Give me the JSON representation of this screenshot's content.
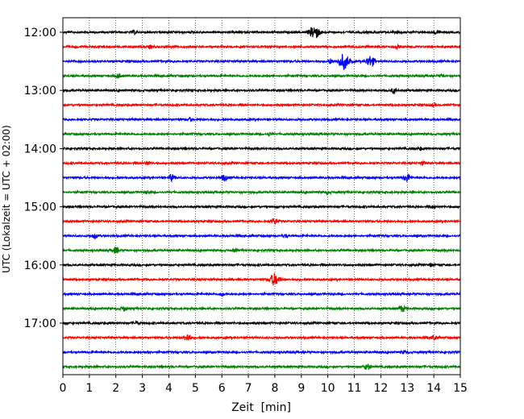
{
  "chart_data": {
    "type": "line",
    "title": "",
    "xlabel": "Zeit  [min]",
    "ylabel": "UTC (Lokalzeit = UTC + 02:00)",
    "xlim": [
      0,
      15
    ],
    "x_ticks": [
      "0",
      "1",
      "2",
      "3",
      "4",
      "5",
      "6",
      "7",
      "8",
      "9",
      "10",
      "11",
      "12",
      "13",
      "14",
      "15"
    ],
    "y_ticks": [
      "12:00",
      "13:00",
      "14:00",
      "15:00",
      "16:00",
      "17:00"
    ],
    "grid": "vertical dotted at each minute",
    "trace_interval_min": 15,
    "trace_colors": [
      "#000000",
      "#ff0000",
      "#0000ff",
      "#008000"
    ],
    "series": [
      {
        "start": "12:00",
        "color": "#000000",
        "events": [
          [
            9.5,
            9
          ],
          [
            14.1,
            3
          ],
          [
            2.7,
            2
          ]
        ]
      },
      {
        "start": "12:15",
        "color": "#ff0000",
        "events": [
          [
            3.3,
            2
          ],
          [
            12.6,
            2
          ]
        ]
      },
      {
        "start": "12:30",
        "color": "#0000ff",
        "events": [
          [
            10.6,
            10
          ],
          [
            11.6,
            7
          ],
          [
            10.1,
            3
          ]
        ]
      },
      {
        "start": "12:45",
        "color": "#008000",
        "events": [
          [
            2.1,
            3
          ],
          [
            14.3,
            2
          ]
        ]
      },
      {
        "start": "13:00",
        "color": "#000000",
        "events": [
          [
            12.5,
            3
          ]
        ]
      },
      {
        "start": "13:15",
        "color": "#ff0000",
        "events": [
          [
            14.0,
            2
          ]
        ]
      },
      {
        "start": "13:30",
        "color": "#0000ff",
        "events": [
          [
            4.8,
            2
          ]
        ]
      },
      {
        "start": "13:45",
        "color": "#008000",
        "events": [
          [
            7.8,
            2
          ]
        ]
      },
      {
        "start": "14:00",
        "color": "#000000",
        "events": [
          [
            13.5,
            2
          ]
        ]
      },
      {
        "start": "14:15",
        "color": "#ff0000",
        "events": [
          [
            3.2,
            2
          ],
          [
            13.6,
            2
          ]
        ]
      },
      {
        "start": "14:30",
        "color": "#0000ff",
        "events": [
          [
            4.1,
            4
          ],
          [
            6.1,
            4
          ],
          [
            13.0,
            5
          ]
        ]
      },
      {
        "start": "14:45",
        "color": "#008000",
        "events": [
          [
            3.2,
            2
          ],
          [
            10.0,
            2
          ]
        ]
      },
      {
        "start": "15:00",
        "color": "#000000",
        "events": [
          [
            14.0,
            2
          ]
        ]
      },
      {
        "start": "15:15",
        "color": "#ff0000",
        "events": [
          [
            8.0,
            4
          ]
        ]
      },
      {
        "start": "15:30",
        "color": "#0000ff",
        "events": [
          [
            1.2,
            3
          ],
          [
            8.4,
            2
          ]
        ]
      },
      {
        "start": "15:45",
        "color": "#008000",
        "events": [
          [
            2.0,
            4
          ],
          [
            6.5,
            2
          ]
        ]
      },
      {
        "start": "16:00",
        "color": "#000000",
        "events": [
          [
            13.9,
            2
          ]
        ]
      },
      {
        "start": "16:15",
        "color": "#ff0000",
        "events": [
          [
            8.0,
            8
          ]
        ]
      },
      {
        "start": "16:30",
        "color": "#0000ff",
        "events": [
          [
            6.0,
            2
          ]
        ]
      },
      {
        "start": "16:45",
        "color": "#008000",
        "events": [
          [
            2.3,
            3
          ],
          [
            12.8,
            4
          ]
        ]
      },
      {
        "start": "17:00",
        "color": "#000000",
        "events": [
          [
            2.8,
            2
          ]
        ]
      },
      {
        "start": "17:15",
        "color": "#ff0000",
        "events": [
          [
            4.7,
            5
          ],
          [
            14.0,
            3
          ]
        ]
      },
      {
        "start": "17:30",
        "color": "#0000ff",
        "events": [
          [
            3.2,
            2
          ],
          [
            12.9,
            2
          ]
        ]
      },
      {
        "start": "17:45",
        "color": "#008000",
        "events": [
          [
            11.5,
            4
          ]
        ]
      }
    ]
  }
}
